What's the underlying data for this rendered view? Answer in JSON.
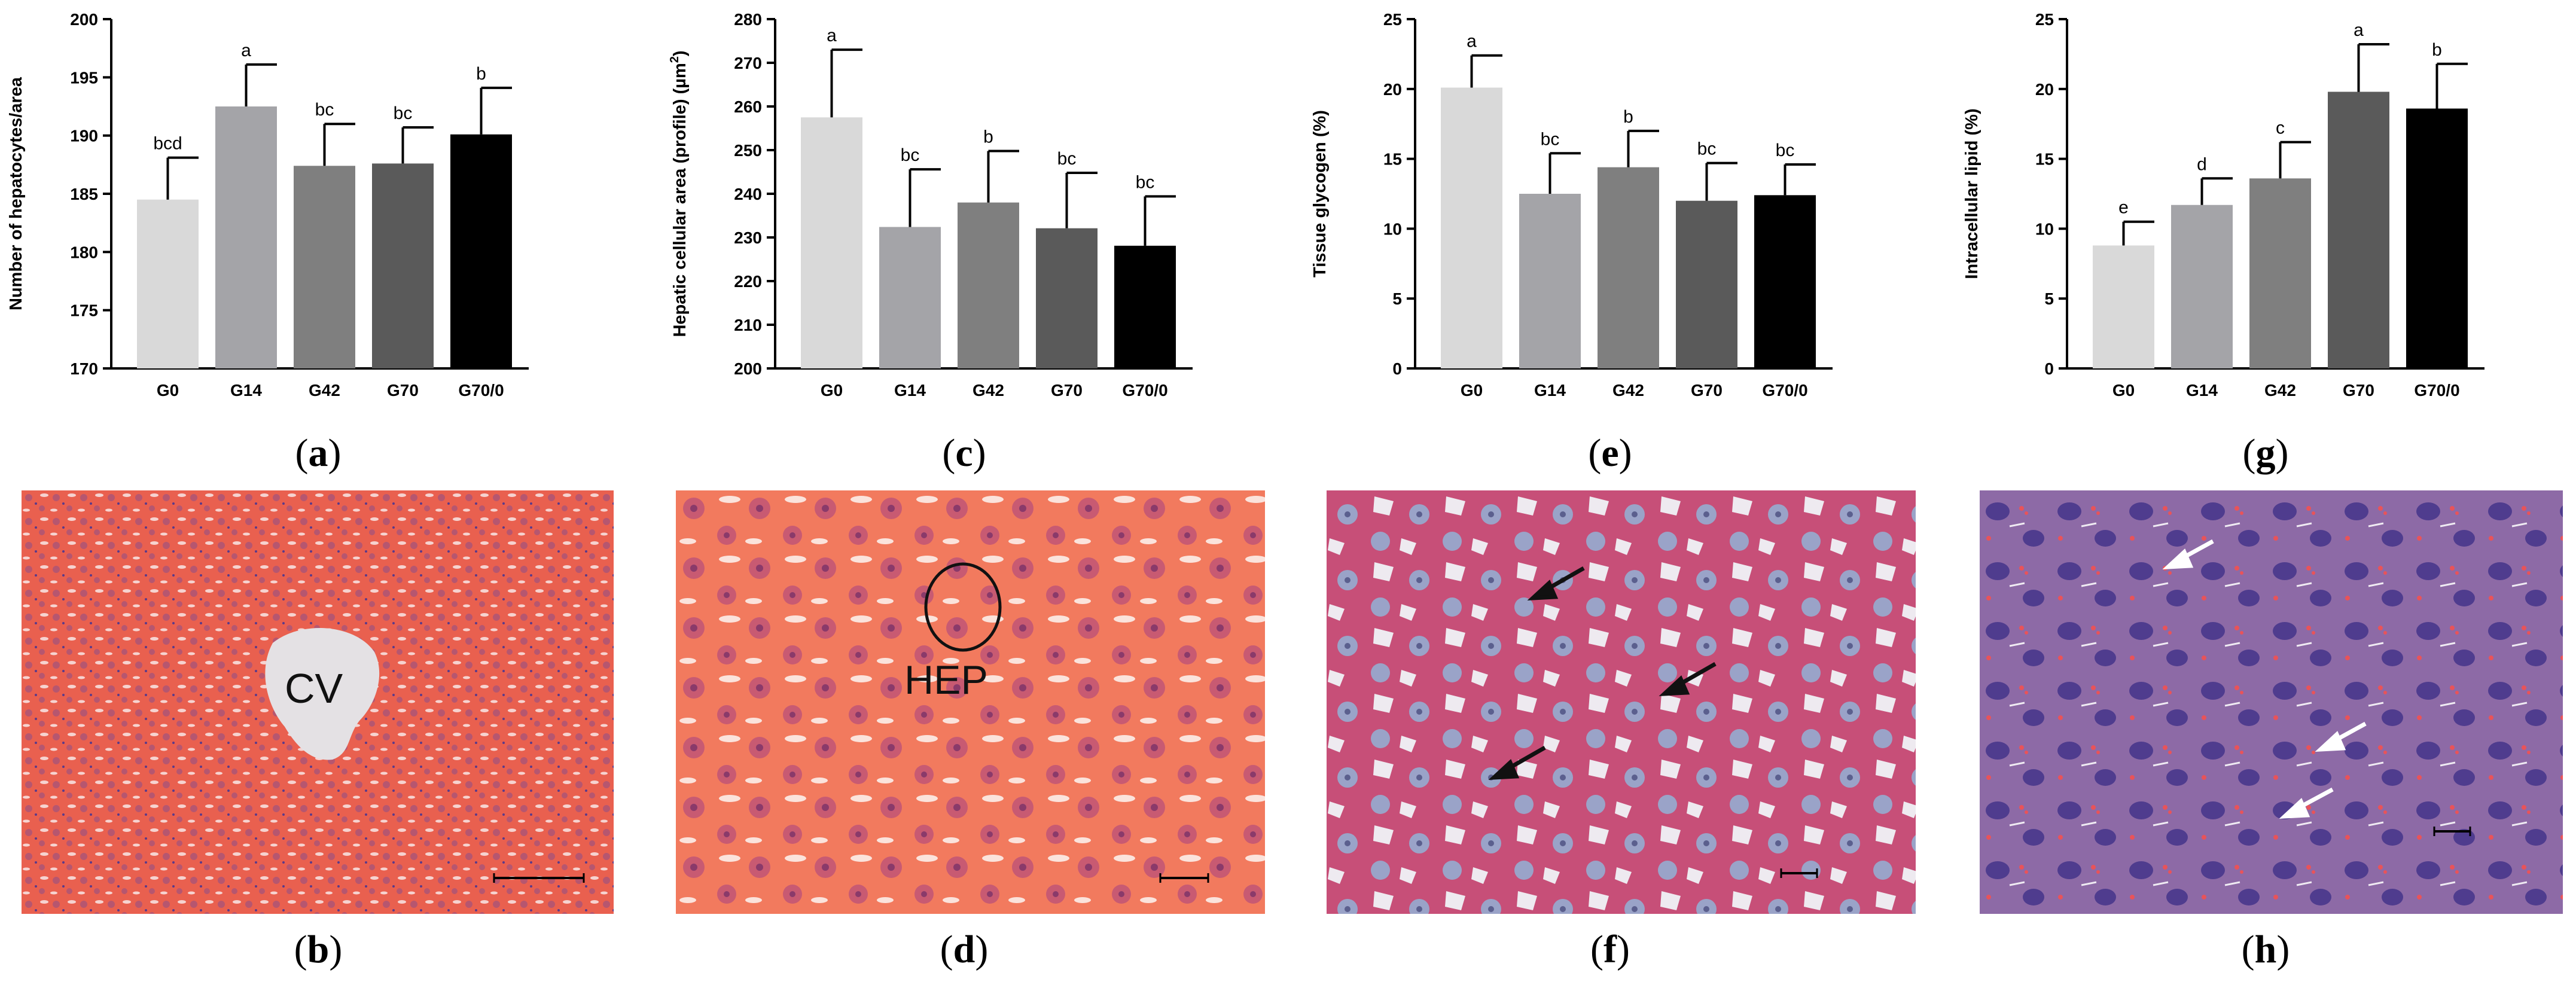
{
  "figure_type": "bar charts with histology micrographs",
  "captions": {
    "a": "a",
    "b": "b",
    "c": "c",
    "d": "d",
    "e": "e",
    "f": "f",
    "g": "g",
    "h": "h"
  },
  "micrograph_labels": {
    "b": "CV",
    "d": "HEP"
  },
  "colors": {
    "bar_fills": [
      "#d9d9d9",
      "#a4a4a8",
      "#7f7f7f",
      "#5a5a5a",
      "#000000"
    ],
    "micro_b_bg": "#e9604f",
    "micro_d_bg": "#f27a5e",
    "micro_f_bg": "#c74f78",
    "micro_h_bg": "#8d6aa6"
  },
  "chart_data": [
    {
      "panel": "a",
      "type": "bar",
      "ylabel": "Number of hepatocytes/area",
      "xlabel": "",
      "categories": [
        "G0",
        "G14",
        "G42",
        "G70",
        "G70/0"
      ],
      "values": [
        184.5,
        192.5,
        187.4,
        187.6,
        190.1
      ],
      "errors": [
        3.6,
        3.6,
        3.6,
        3.1,
        4.0
      ],
      "letters": [
        "bcd",
        "a",
        "bc",
        "bc",
        "b"
      ],
      "ylim": [
        170,
        200
      ],
      "yticks": [
        170,
        175,
        180,
        185,
        190,
        195,
        200
      ]
    },
    {
      "panel": "c",
      "type": "bar",
      "ylabel": "Hepatic cellular area (profile) (µm²)",
      "xlabel": "",
      "categories": [
        "G0",
        "G14",
        "G42",
        "G70",
        "G70/0"
      ],
      "values": [
        257.5,
        232.4,
        238.0,
        232.1,
        228.1
      ],
      "errors": [
        15.5,
        13.2,
        11.8,
        12.7,
        11.3
      ],
      "letters": [
        "a",
        "bc",
        "b",
        "bc",
        "bc"
      ],
      "ylim": [
        200,
        280
      ],
      "yticks": [
        200,
        210,
        220,
        230,
        240,
        250,
        260,
        270,
        280
      ]
    },
    {
      "panel": "e",
      "type": "bar",
      "ylabel": "Tissue glycogen (%)",
      "xlabel": "",
      "categories": [
        "G0",
        "G14",
        "G42",
        "G70",
        "G70/0"
      ],
      "values": [
        20.1,
        12.5,
        14.4,
        12.0,
        12.4
      ],
      "errors": [
        2.3,
        2.9,
        2.6,
        2.7,
        2.2
      ],
      "letters": [
        "a",
        "bc",
        "b",
        "bc",
        "bc"
      ],
      "ylim": [
        0,
        25
      ],
      "yticks": [
        0,
        5,
        10,
        15,
        20,
        25
      ]
    },
    {
      "panel": "g",
      "type": "bar",
      "ylabel": "Intracellular lipid (%)",
      "xlabel": "",
      "categories": [
        "G0",
        "G14",
        "G42",
        "G70",
        "G70/0"
      ],
      "values": [
        8.8,
        11.7,
        13.6,
        19.8,
        18.6
      ],
      "errors": [
        1.7,
        1.9,
        2.6,
        3.4,
        3.2
      ],
      "letters": [
        "e",
        "d",
        "c",
        "a",
        "b"
      ],
      "ylim": [
        0,
        25
      ],
      "yticks": [
        0,
        5,
        10,
        15,
        20,
        25
      ]
    }
  ]
}
